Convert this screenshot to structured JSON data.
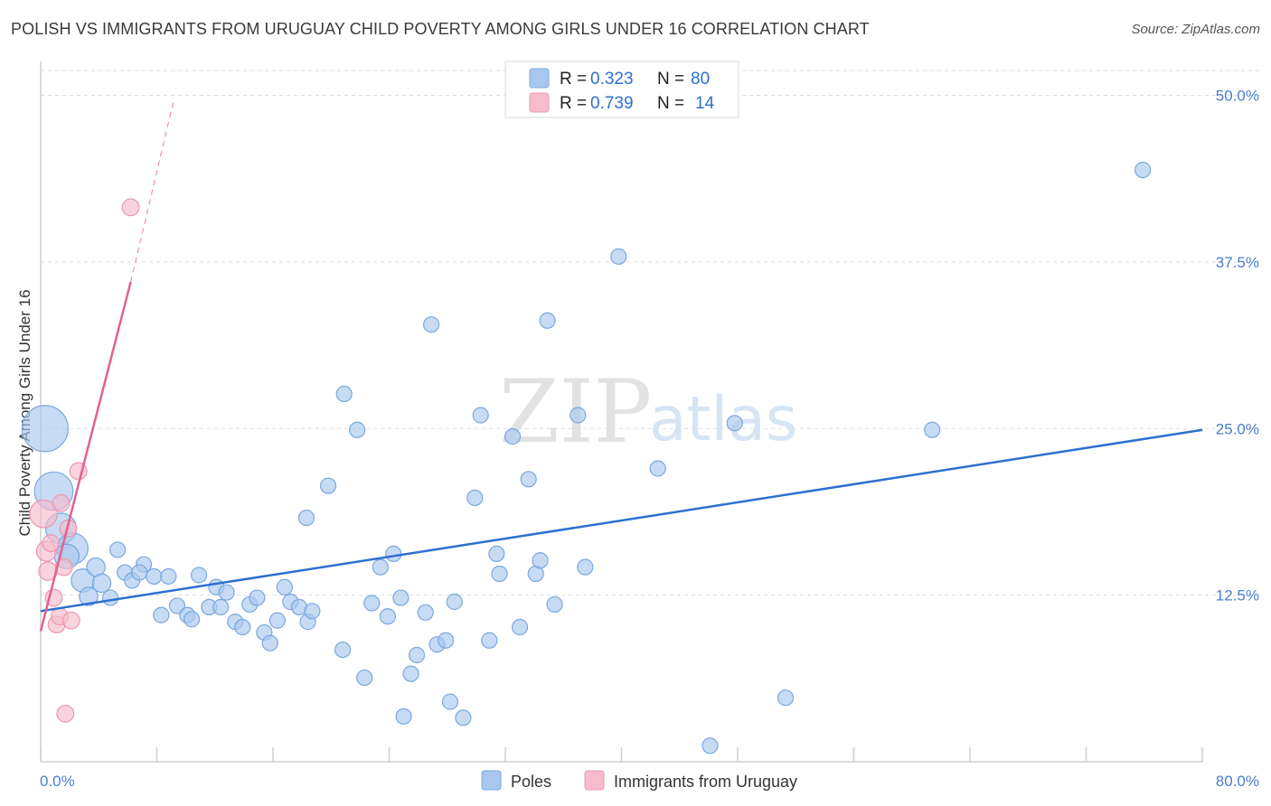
{
  "title": "POLISH VS IMMIGRANTS FROM URUGUAY CHILD POVERTY AMONG GIRLS UNDER 16 CORRELATION CHART",
  "source": "Source: ZipAtlas.com",
  "watermark": {
    "zip": "ZIP",
    "atlas": "atlas"
  },
  "colors": {
    "poles_fill": "#a9c7ee",
    "poles_stroke": "#7aa8e0",
    "poles_line": "#2d6fd2",
    "uruguay_fill": "#f6bccd",
    "uruguay_stroke": "#ec97b1",
    "uruguay_line": "#e2628e",
    "axis_text": "#4a7fd0",
    "grid": "#dddddd"
  },
  "legend": {
    "rows": [
      {
        "r_label": "R =",
        "r_value": "0.323",
        "n_label": "N =",
        "n_value": "80"
      },
      {
        "r_label": "R =",
        "r_value": "0.739",
        "n_label": "N =",
        "n_value": "14"
      }
    ]
  },
  "chart_data": {
    "type": "scatter",
    "title": "POLISH VS IMMIGRANTS FROM URUGUAY CHILD POVERTY AMONG GIRLS UNDER 16 CORRELATION CHART",
    "xlabel": "",
    "ylabel": "Child Poverty Among Girls Under 16",
    "xlim": [
      0,
      80
    ],
    "ylim": [
      0,
      52
    ],
    "x_tick_labels": [
      "0.0%",
      "80.0%"
    ],
    "y_ticks": [
      12.5,
      25.0,
      37.5,
      50.0
    ],
    "y_tick_labels": [
      "12.5%",
      "25.0%",
      "37.5%",
      "50.0%"
    ],
    "legend_position": "top-center",
    "series": [
      {
        "name": "Poles",
        "r": 0.323,
        "n": 80,
        "trend": {
          "x0": 0,
          "y0": 11.3,
          "x1": 80,
          "y1": 24.9
        },
        "points": [
          [
            0.3,
            25.0,
            3
          ],
          [
            0.9,
            20.3,
            2.5
          ],
          [
            1.4,
            17.5,
            2
          ],
          [
            2.2,
            16.0,
            2
          ],
          [
            1.8,
            15.4,
            1.6
          ],
          [
            2.9,
            13.6,
            1.5
          ],
          [
            3.3,
            12.4,
            1.2
          ],
          [
            3.8,
            14.6,
            1.2
          ],
          [
            4.2,
            13.4,
            1.2
          ],
          [
            4.8,
            12.3,
            1
          ],
          [
            5.3,
            15.9,
            1
          ],
          [
            5.8,
            14.2,
            1
          ],
          [
            6.3,
            13.6,
            1
          ],
          [
            7.1,
            14.8,
            1
          ],
          [
            6.8,
            14.2,
            1
          ],
          [
            7.8,
            13.9,
            1
          ],
          [
            8.3,
            11.0,
            1
          ],
          [
            8.8,
            13.9,
            1
          ],
          [
            9.4,
            11.7,
            1
          ],
          [
            10.1,
            11.0,
            1
          ],
          [
            10.4,
            10.7,
            1
          ],
          [
            10.9,
            14.0,
            1
          ],
          [
            11.6,
            11.6,
            1
          ],
          [
            12.1,
            13.1,
            1
          ],
          [
            12.4,
            11.6,
            1
          ],
          [
            12.8,
            12.7,
            1
          ],
          [
            13.4,
            10.5,
            1
          ],
          [
            13.9,
            10.1,
            1
          ],
          [
            14.4,
            11.8,
            1
          ],
          [
            14.9,
            12.3,
            1
          ],
          [
            15.4,
            9.7,
            1
          ],
          [
            15.8,
            8.9,
            1
          ],
          [
            16.3,
            10.6,
            1
          ],
          [
            16.8,
            13.1,
            1
          ],
          [
            17.2,
            12.0,
            1
          ],
          [
            17.8,
            11.6,
            1
          ],
          [
            18.4,
            10.5,
            1
          ],
          [
            18.7,
            11.3,
            1
          ],
          [
            18.3,
            18.3,
            1
          ],
          [
            19.8,
            20.7,
            1
          ],
          [
            20.8,
            8.4,
            1
          ],
          [
            20.9,
            27.6,
            1
          ],
          [
            21.8,
            24.9,
            1
          ],
          [
            22.3,
            6.3,
            1
          ],
          [
            22.8,
            11.9,
            1
          ],
          [
            23.4,
            14.6,
            1
          ],
          [
            23.9,
            10.9,
            1
          ],
          [
            24.3,
            15.6,
            1
          ],
          [
            24.8,
            12.3,
            1
          ],
          [
            25.0,
            3.4,
            1
          ],
          [
            25.5,
            6.6,
            1
          ],
          [
            25.9,
            8.0,
            1
          ],
          [
            26.5,
            11.2,
            1
          ],
          [
            26.9,
            32.8,
            1
          ],
          [
            27.3,
            8.8,
            1
          ],
          [
            27.9,
            9.1,
            1
          ],
          [
            28.2,
            4.5,
            1
          ],
          [
            28.5,
            12.0,
            1
          ],
          [
            29.1,
            3.3,
            1
          ],
          [
            29.9,
            19.8,
            1
          ],
          [
            30.3,
            26.0,
            1
          ],
          [
            30.9,
            9.1,
            1
          ],
          [
            31.4,
            15.6,
            1
          ],
          [
            31.6,
            14.1,
            1
          ],
          [
            32.5,
            24.4,
            1
          ],
          [
            33.0,
            10.1,
            1
          ],
          [
            33.6,
            21.2,
            1
          ],
          [
            34.1,
            14.1,
            1
          ],
          [
            34.4,
            15.1,
            1
          ],
          [
            34.9,
            33.1,
            1
          ],
          [
            35.4,
            11.8,
            1
          ],
          [
            37.0,
            26.0,
            1
          ],
          [
            37.5,
            14.6,
            1
          ],
          [
            39.8,
            37.9,
            1
          ],
          [
            42.5,
            22.0,
            1
          ],
          [
            46.1,
            1.2,
            1
          ],
          [
            47.8,
            25.4,
            1
          ],
          [
            51.3,
            4.8,
            1
          ],
          [
            61.4,
            24.9,
            1
          ],
          [
            75.9,
            44.4,
            1
          ]
        ]
      },
      {
        "name": "Immigrants from Uruguay",
        "r": 0.739,
        "n": 14,
        "trend": {
          "x0": 0,
          "y0": 9.8,
          "x1": 6.2,
          "y1": 36.0,
          "dash_x1": 9.2,
          "dash_y1": 49.8
        },
        "points": [
          [
            0.2,
            18.6,
            1.8
          ],
          [
            0.4,
            15.8,
            1.3
          ],
          [
            0.5,
            14.3,
            1.2
          ],
          [
            0.7,
            16.4,
            1.1
          ],
          [
            0.9,
            12.3,
            1.1
          ],
          [
            1.1,
            10.3,
            1.1
          ],
          [
            1.3,
            10.9,
            1.1
          ],
          [
            1.4,
            19.4,
            1.1
          ],
          [
            1.6,
            14.6,
            1.1
          ],
          [
            1.7,
            3.6,
            1.1
          ],
          [
            1.9,
            17.5,
            1.1
          ],
          [
            2.1,
            10.6,
            1.1
          ],
          [
            2.6,
            21.8,
            1.1
          ],
          [
            6.2,
            41.6,
            1.1
          ]
        ]
      }
    ]
  },
  "bottom_legend": {
    "poles": "Poles",
    "uruguay": "Immigrants from Uruguay"
  }
}
